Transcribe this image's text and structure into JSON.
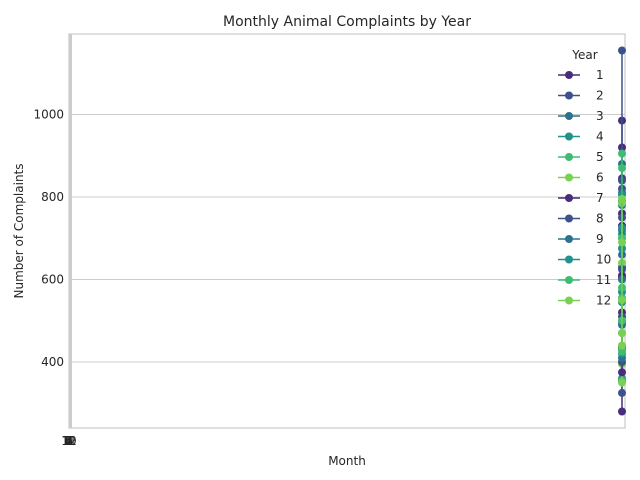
{
  "chart_data": {
    "type": "line",
    "title": "Monthly Animal Complaints by Year",
    "xlabel": "Month",
    "ylabel": "Number of Complaints",
    "ylim": [
      240,
      1195
    ],
    "yticks": [
      400,
      600,
      800,
      1000
    ],
    "legend_title": "Year",
    "legend_position": "top-right",
    "grid": "horizontal",
    "series": [
      {
        "name": "1",
        "color": "#472d7b",
        "values": [
          280,
          435,
          610,
          760,
          920,
          985
        ]
      },
      {
        "name": "2",
        "color": "#3b528b",
        "values": [
          325,
          500,
          630,
          820,
          1155
        ]
      },
      {
        "name": "3",
        "color": "#2c728e",
        "values": [
          355,
          495,
          660,
          780,
          880
        ]
      },
      {
        "name": "4",
        "color": "#21918c",
        "values": [
          360,
          470,
          570,
          710,
          790
        ]
      },
      {
        "name": "5",
        "color": "#3fbc73",
        "values": [
          355,
          430,
          555,
          700,
          870
        ]
      },
      {
        "name": "6",
        "color": "#7ad151",
        "values": [
          350,
          395,
          500,
          640,
          785
        ]
      },
      {
        "name": "7",
        "color": "#472d7b",
        "values": [
          375,
          520,
          605,
          730,
          845
        ]
      },
      {
        "name": "8",
        "color": "#3b528b",
        "values": [
          400,
          510,
          625,
          750,
          840
        ]
      },
      {
        "name": "9",
        "color": "#2c728e",
        "values": [
          410,
          490,
          600,
          720,
          810
        ]
      },
      {
        "name": "10",
        "color": "#21918c",
        "values": [
          420,
          545,
          675,
          725,
          805
        ]
      },
      {
        "name": "11",
        "color": "#3fbc73",
        "values": [
          425,
          500,
          580,
          700,
          905
        ]
      },
      {
        "name": "12",
        "color": "#7ad151",
        "values": [
          440,
          470,
          550,
          690,
          795
        ]
      }
    ]
  }
}
